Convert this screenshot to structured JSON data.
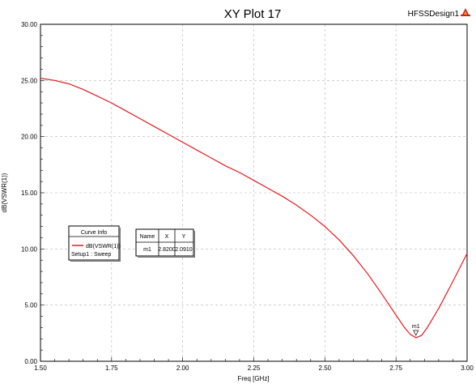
{
  "chart_data": {
    "type": "line",
    "title": "XY Plot 17",
    "brand": "HFSSDesign1",
    "brand_icon": "ansoft-logo-icon",
    "xlabel": "Freq [GHz]",
    "ylabel": "dB(VSWR(1))",
    "xlim": [
      1.5,
      3.0
    ],
    "ylim": [
      0,
      30
    ],
    "x_ticks": [
      "1.50",
      "1.75",
      "2.00",
      "2.25",
      "2.50",
      "2.75",
      "3.00"
    ],
    "y_ticks": [
      "0.00",
      "5.00",
      "10.00",
      "15.00",
      "20.00",
      "25.00",
      "30.00"
    ],
    "grid": true,
    "series": [
      {
        "name": "dB(VSWR(1))",
        "color": "#e41a1c",
        "x": [
          1.5,
          1.55,
          1.6,
          1.65,
          1.7,
          1.75,
          1.8,
          1.85,
          1.9,
          1.95,
          2.0,
          2.05,
          2.1,
          2.15,
          2.2,
          2.25,
          2.3,
          2.35,
          2.4,
          2.45,
          2.5,
          2.55,
          2.6,
          2.65,
          2.7,
          2.75,
          2.78,
          2.8,
          2.82,
          2.84,
          2.86,
          2.9,
          2.95,
          3.0
        ],
        "y": [
          25.2,
          25.0,
          24.7,
          24.2,
          23.6,
          23.0,
          22.3,
          21.6,
          20.9,
          20.2,
          19.5,
          18.8,
          18.1,
          17.4,
          16.8,
          16.1,
          15.4,
          14.7,
          13.9,
          13.0,
          12.0,
          10.8,
          9.4,
          7.8,
          6.0,
          4.1,
          3.0,
          2.4,
          2.1,
          2.3,
          3.0,
          4.7,
          7.1,
          9.6
        ]
      }
    ],
    "legend": {
      "header": "Curve Info",
      "entry": "dB(VSWR(1))",
      "sub": "Setup1 : Sweep",
      "placement": "center-left"
    },
    "marker_table": {
      "headers": [
        "Name",
        "X",
        "Y"
      ],
      "rows": [
        [
          "m1",
          "2.8200",
          "2.0910"
        ]
      ]
    },
    "markers": [
      {
        "name": "m1",
        "x": 2.82,
        "y": 2.091
      }
    ]
  }
}
